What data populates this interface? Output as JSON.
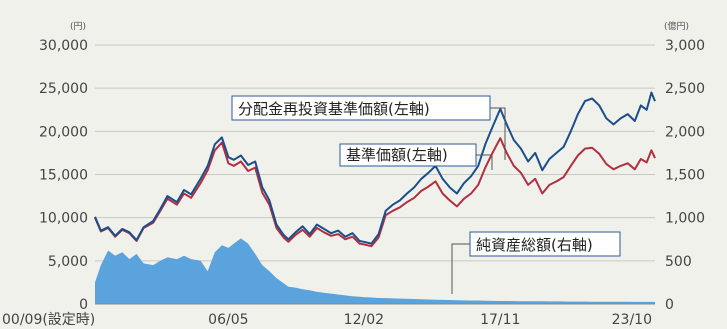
{
  "chart_data": {
    "type": "line",
    "left_axis": {
      "unit": "(円)",
      "ylim": [
        0,
        30000
      ],
      "ticks": [
        0,
        5000,
        10000,
        15000,
        20000,
        25000,
        30000
      ],
      "tick_labels": [
        "0",
        "5,000",
        "10,000",
        "15,000",
        "20,000",
        "25,000",
        "30,000"
      ]
    },
    "right_axis": {
      "unit": "(億円)",
      "ylim": [
        0,
        3000
      ],
      "ticks": [
        0,
        500,
        1000,
        1500,
        2000,
        2500,
        3000
      ],
      "tick_labels": [
        "0",
        "500",
        "1,000",
        "1,500",
        "2,000",
        "2,500",
        "3,000"
      ]
    },
    "x_axis": {
      "tick_labels": [
        {
          "label": "00/09(設定時)",
          "year": 2000.75
        },
        {
          "label": "06/05",
          "year": 2006.37
        },
        {
          "label": "12/02",
          "year": 2012.08
        },
        {
          "label": "17/11",
          "year": 2017.83
        },
        {
          "label": "23/10",
          "year": 2023.75
        }
      ],
      "xlim": [
        2000.75,
        2024.35
      ]
    },
    "grid": true,
    "colors": {
      "reinvested": "#1a4f8c",
      "nav": "#b03040",
      "assets_fill": "#5ba3dc",
      "annotation_border": "#2a5a9a"
    },
    "annotations": {
      "reinvested": "分配金再投資基準価額(左軸)",
      "nav": "基準価額(左軸)",
      "assets": "純資産総額(右軸)"
    },
    "series": [
      {
        "name": "分配金再投資基準価額(左軸)",
        "axis": "left",
        "type": "line",
        "x": [
          2000.75,
          2001.0,
          2001.3,
          2001.6,
          2001.9,
          2002.2,
          2002.5,
          2002.8,
          2003.2,
          2003.5,
          2003.8,
          2004.2,
          2004.5,
          2004.8,
          2005.2,
          2005.5,
          2005.8,
          2006.1,
          2006.37,
          2006.6,
          2006.9,
          2007.2,
          2007.5,
          2007.8,
          2008.1,
          2008.4,
          2008.7,
          2008.9,
          2009.2,
          2009.5,
          2009.8,
          2010.1,
          2010.4,
          2010.7,
          2011.0,
          2011.3,
          2011.6,
          2011.9,
          2012.08,
          2012.4,
          2012.7,
          2013.0,
          2013.3,
          2013.6,
          2013.9,
          2014.2,
          2014.5,
          2014.8,
          2015.1,
          2015.4,
          2015.7,
          2016.0,
          2016.3,
          2016.6,
          2016.9,
          2017.2,
          2017.5,
          2017.83,
          2018.1,
          2018.4,
          2018.7,
          2019.0,
          2019.3,
          2019.6,
          2019.9,
          2020.2,
          2020.5,
          2020.8,
          2021.1,
          2021.4,
          2021.7,
          2022.0,
          2022.3,
          2022.6,
          2022.9,
          2023.2,
          2023.5,
          2023.75,
          2024.0,
          2024.2,
          2024.35
        ],
        "values": [
          10100,
          8500,
          8900,
          7900,
          8700,
          8300,
          7400,
          8900,
          9600,
          11000,
          12500,
          11800,
          13200,
          12700,
          14500,
          16000,
          18500,
          19300,
          17000,
          16700,
          17200,
          16100,
          16500,
          13500,
          12000,
          9200,
          8000,
          7500,
          8300,
          9000,
          8100,
          9200,
          8700,
          8200,
          8500,
          7800,
          8200,
          7300,
          7200,
          7000,
          8100,
          10800,
          11500,
          12000,
          12800,
          13500,
          14500,
          15200,
          16000,
          14500,
          13500,
          12800,
          14000,
          14800,
          16000,
          18500,
          20500,
          22600,
          20800,
          19000,
          18000,
          16500,
          17500,
          15500,
          16800,
          17500,
          18200,
          20000,
          22000,
          23500,
          23800,
          23000,
          21500,
          20800,
          21500,
          22000,
          21200,
          23000,
          22500,
          24500,
          23500
        ]
      },
      {
        "name": "基準価額(左軸)",
        "axis": "left",
        "type": "line",
        "x": [
          2000.75,
          2001.0,
          2001.3,
          2001.6,
          2001.9,
          2002.2,
          2002.5,
          2002.8,
          2003.2,
          2003.5,
          2003.8,
          2004.2,
          2004.5,
          2004.8,
          2005.2,
          2005.5,
          2005.8,
          2006.1,
          2006.37,
          2006.6,
          2006.9,
          2007.2,
          2007.5,
          2007.8,
          2008.1,
          2008.4,
          2008.7,
          2008.9,
          2009.2,
          2009.5,
          2009.8,
          2010.1,
          2010.4,
          2010.7,
          2011.0,
          2011.3,
          2011.6,
          2011.9,
          2012.08,
          2012.4,
          2012.7,
          2013.0,
          2013.3,
          2013.6,
          2013.9,
          2014.2,
          2014.5,
          2014.8,
          2015.1,
          2015.4,
          2015.7,
          2016.0,
          2016.3,
          2016.6,
          2016.9,
          2017.2,
          2017.5,
          2017.83,
          2018.1,
          2018.4,
          2018.7,
          2019.0,
          2019.3,
          2019.6,
          2019.9,
          2020.2,
          2020.5,
          2020.8,
          2021.1,
          2021.4,
          2021.7,
          2022.0,
          2022.3,
          2022.6,
          2022.9,
          2023.2,
          2023.5,
          2023.75,
          2024.0,
          2024.2,
          2024.35
        ],
        "values": [
          10000,
          8400,
          8800,
          7800,
          8600,
          8200,
          7300,
          8800,
          9400,
          10800,
          12200,
          11500,
          12800,
          12300,
          14000,
          15500,
          17800,
          18700,
          16300,
          16000,
          16500,
          15400,
          15800,
          12900,
          11500,
          8800,
          7700,
          7200,
          8000,
          8600,
          7800,
          8800,
          8300,
          7900,
          8100,
          7500,
          7800,
          7000,
          6900,
          6700,
          7700,
          10300,
          10800,
          11200,
          11800,
          12300,
          13100,
          13600,
          14200,
          12800,
          12000,
          11300,
          12200,
          12800,
          13800,
          15800,
          17500,
          19200,
          17500,
          16000,
          15200,
          13800,
          14500,
          12800,
          13800,
          14200,
          14700,
          16000,
          17200,
          18000,
          18100,
          17400,
          16200,
          15600,
          16000,
          16300,
          15600,
          16800,
          16400,
          17800,
          16900
        ]
      },
      {
        "name": "純資産総額(右軸)",
        "axis": "right",
        "type": "area",
        "x": [
          2000.75,
          2001.0,
          2001.3,
          2001.6,
          2001.9,
          2002.2,
          2002.5,
          2002.8,
          2003.2,
          2003.5,
          2003.8,
          2004.2,
          2004.5,
          2004.8,
          2005.2,
          2005.5,
          2005.8,
          2006.1,
          2006.37,
          2006.6,
          2006.9,
          2007.2,
          2007.5,
          2007.8,
          2008.1,
          2008.4,
          2008.7,
          2008.9,
          2009.2,
          2009.5,
          2009.8,
          2010.1,
          2010.4,
          2010.7,
          2011.0,
          2011.3,
          2011.6,
          2011.9,
          2012.08,
          2012.4,
          2012.7,
          2013.0,
          2013.3,
          2013.6,
          2013.9,
          2014.2,
          2014.5,
          2014.8,
          2015.1,
          2015.4,
          2015.7,
          2016.0,
          2016.3,
          2016.6,
          2016.9,
          2017.2,
          2017.5,
          2017.83,
          2018.1,
          2018.4,
          2018.7,
          2019.0,
          2019.3,
          2019.6,
          2019.9,
          2020.2,
          2020.5,
          2020.8,
          2021.1,
          2021.4,
          2021.7,
          2022.0,
          2022.3,
          2022.6,
          2022.9,
          2023.2,
          2023.5,
          2023.75,
          2024.0,
          2024.2,
          2024.35
        ],
        "values": [
          250,
          450,
          620,
          560,
          600,
          520,
          580,
          470,
          450,
          500,
          540,
          520,
          560,
          520,
          500,
          380,
          600,
          680,
          650,
          700,
          760,
          700,
          580,
          450,
          380,
          300,
          240,
          200,
          190,
          170,
          160,
          140,
          130,
          120,
          110,
          100,
          90,
          85,
          80,
          75,
          70,
          68,
          65,
          62,
          60,
          58,
          55,
          52,
          50,
          48,
          46,
          44,
          42,
          40,
          40,
          38,
          36,
          35,
          35,
          34,
          33,
          32,
          32,
          31,
          30,
          30,
          29,
          28,
          28,
          28,
          27,
          26,
          26,
          25,
          25,
          25,
          24,
          24,
          24,
          24,
          24
        ]
      }
    ]
  }
}
